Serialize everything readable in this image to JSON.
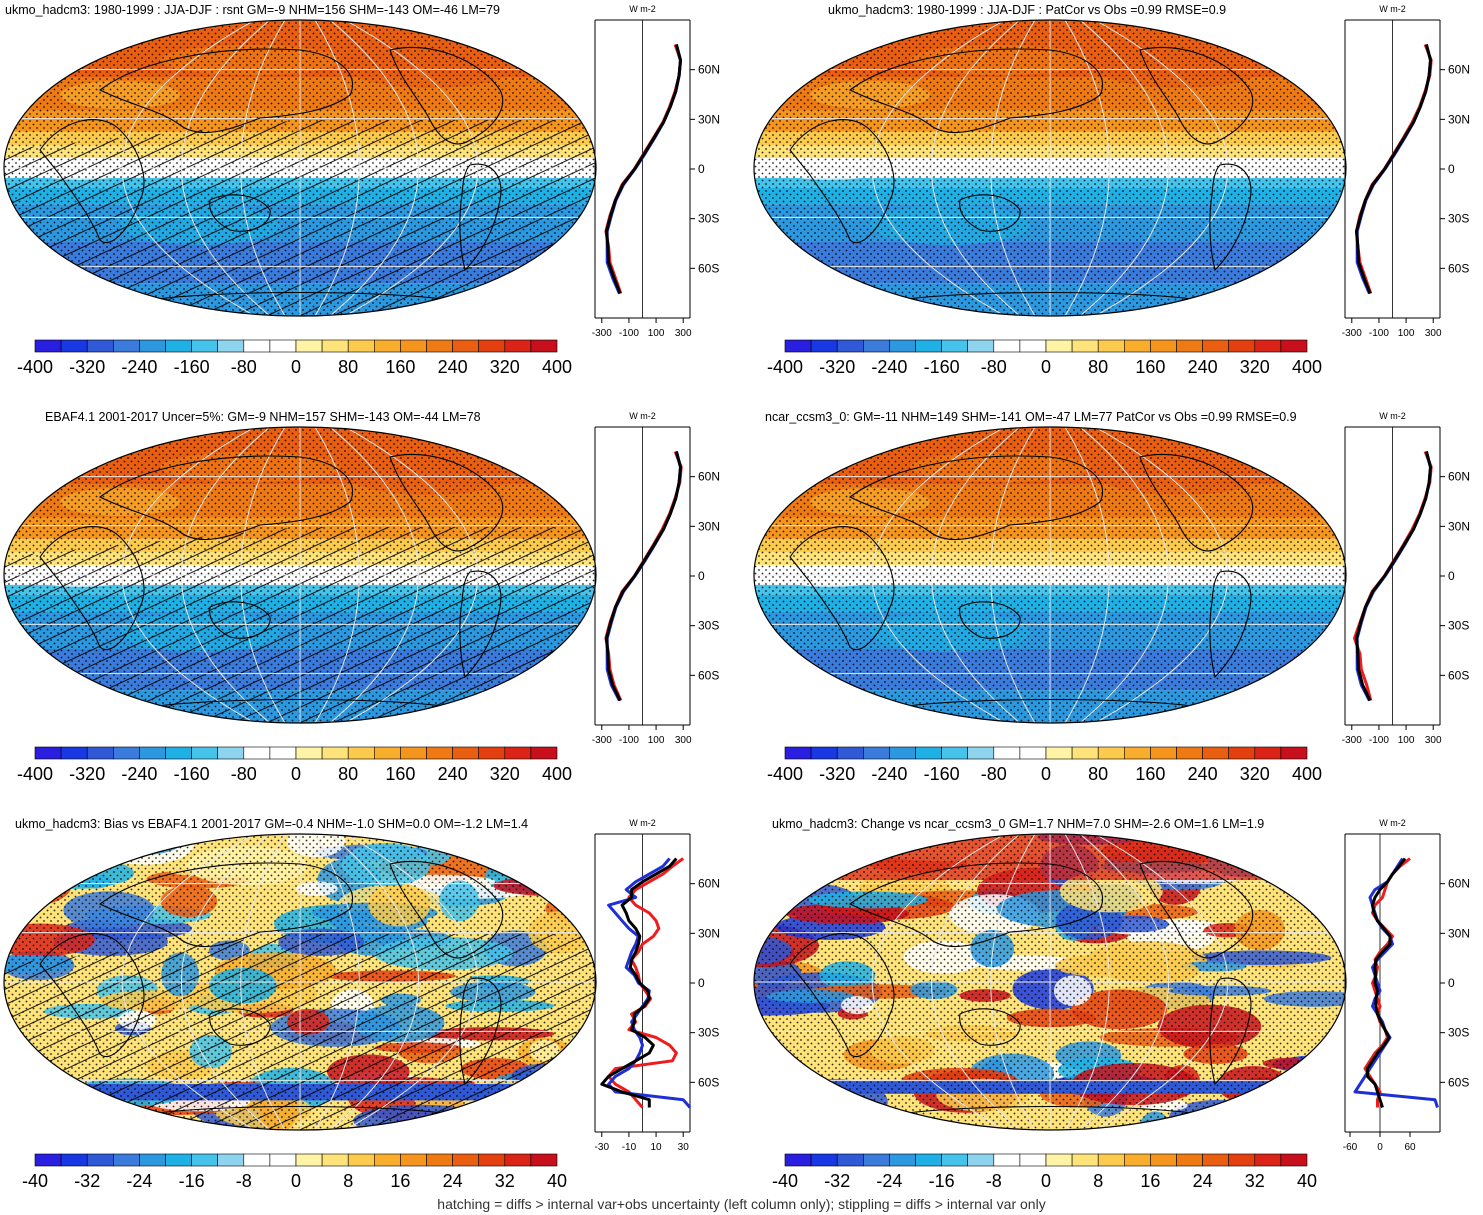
{
  "footer": "hatching = diffs > internal var+obs uncertainty (left column only); stippling = diffs > internal var only",
  "colors": {
    "scale": [
      "#2a1ee0",
      "#1738e3",
      "#2f59d6",
      "#3a7bdc",
      "#2b98e0",
      "#1fb1e6",
      "#45c3ea",
      "#8fd4ee",
      "#ffffff",
      "#ffffff",
      "#fff3a6",
      "#fde37a",
      "#fccb4e",
      "#f9ad2c",
      "#f5951d",
      "#ef7a14",
      "#ea5e12",
      "#e4400f",
      "#dc2318",
      "#c8101c"
    ],
    "red_line": "#ee1c1c",
    "blue_line": "#1f2fd6",
    "black_line": "#000000"
  },
  "chart_data": [
    {
      "type": "heatmap",
      "panel": "top-left",
      "title": "ukmo_hadcm3: 1980-1999 : JJA-DJF : rsnt GM=-9 NHM=156 SHM=-143 OM=-46 LM=79",
      "colorbar_ticks": [
        "-400",
        "-320",
        "-240",
        "-160",
        "-80",
        "0",
        "80",
        "160",
        "240",
        "320",
        "400"
      ],
      "profile": {
        "unit": "W m-2",
        "xticks": [
          "-300",
          "-100",
          "100",
          "300"
        ],
        "xlim": [
          -350,
          350
        ],
        "yticks": [
          "60N",
          "30N",
          "0",
          "30S",
          "60S"
        ],
        "lat": [
          80,
          70,
          60,
          50,
          40,
          30,
          20,
          10,
          0,
          -10,
          -20,
          -30,
          -40,
          -50,
          -60,
          -70,
          -80
        ],
        "series": [
          {
            "color": "red",
            "values": [
              240,
              280,
              270,
              240,
              200,
              150,
              80,
              10,
              -60,
              -150,
              -200,
              -240,
              -270,
              -250,
              -240,
              -200,
              -160
            ]
          },
          {
            "color": "blue",
            "values": [
              250,
              280,
              270,
              245,
              205,
              155,
              90,
              20,
              -55,
              -140,
              -195,
              -230,
              -260,
              -260,
              -260,
              -220,
              -170
            ]
          },
          {
            "color": "black",
            "values": [
              250,
              280,
              270,
              245,
              205,
              155,
              85,
              15,
              -58,
              -145,
              -200,
              -235,
              -265,
              -255,
              -250,
              -210,
              -165
            ]
          }
        ]
      }
    },
    {
      "type": "heatmap",
      "panel": "top-right",
      "title": "ukmo_hadcm3: 1980-1999 : JJA-DJF : PatCor vs Obs =0.99 RMSE=0.9",
      "colorbar_ticks": [
        "-400",
        "-320",
        "-240",
        "-160",
        "-80",
        "0",
        "80",
        "160",
        "240",
        "320",
        "400"
      ],
      "profile": {
        "unit": "W m-2",
        "xticks": [
          "-300",
          "-100",
          "100",
          "300"
        ],
        "xlim": [
          -350,
          350
        ],
        "yticks": [
          "60N",
          "30N",
          "0",
          "30S",
          "60S"
        ],
        "lat": [
          80,
          70,
          60,
          50,
          40,
          30,
          20,
          10,
          0,
          -10,
          -20,
          -30,
          -40,
          -50,
          -60,
          -70,
          -80
        ],
        "series": [
          {
            "color": "red",
            "values": [
              240,
              285,
              275,
              240,
              200,
              145,
              80,
              10,
              -60,
              -150,
              -200,
              -240,
              -265,
              -255,
              -240,
              -200,
              -160
            ]
          },
          {
            "color": "blue",
            "values": [
              250,
              280,
              270,
              245,
              205,
              155,
              90,
              20,
              -55,
              -140,
              -195,
              -230,
              -260,
              -260,
              -260,
              -220,
              -170
            ]
          },
          {
            "color": "black",
            "values": [
              250,
              280,
              270,
              245,
              205,
              155,
              85,
              15,
              -58,
              -145,
              -200,
              -235,
              -265,
              -255,
              -250,
              -210,
              -165
            ]
          }
        ]
      }
    },
    {
      "type": "heatmap",
      "panel": "middle-left",
      "title": "EBAF4.1 2001-2017 Uncer=5%: GM=-9 NHM=157 SHM=-143 OM=-44 LM=78",
      "colorbar_ticks": [
        "-400",
        "-320",
        "-240",
        "-160",
        "-80",
        "0",
        "80",
        "160",
        "240",
        "320",
        "400"
      ],
      "profile": {
        "unit": "W m-2",
        "xticks": [
          "-300",
          "-100",
          "100",
          "300"
        ],
        "xlim": [
          -350,
          350
        ],
        "yticks": [
          "60N",
          "30N",
          "0",
          "30S",
          "60S"
        ],
        "lat": [
          80,
          70,
          60,
          50,
          40,
          30,
          20,
          10,
          0,
          -10,
          -20,
          -30,
          -40,
          -50,
          -60,
          -70,
          -80
        ],
        "series": [
          {
            "color": "red",
            "values": [
              240,
              285,
              275,
              240,
              200,
              145,
              80,
              10,
              -60,
              -150,
              -200,
              -240,
              -270,
              -250,
              -240,
              -210,
              -160
            ]
          },
          {
            "color": "blue",
            "values": [
              250,
              280,
              270,
              245,
              205,
              155,
              90,
              20,
              -55,
              -140,
              -195,
              -230,
              -260,
              -260,
              -260,
              -230,
              -170
            ]
          },
          {
            "color": "black",
            "values": [
              250,
              280,
              270,
              245,
              205,
              155,
              85,
              15,
              -58,
              -145,
              -200,
              -235,
              -265,
              -255,
              -250,
              -220,
              -165
            ]
          }
        ]
      }
    },
    {
      "type": "heatmap",
      "panel": "middle-right",
      "title": "ncar_ccsm3_0: GM=-11 NHM=149 SHM=-141 OM=-47 LM=77 PatCor vs Obs =0.99 RMSE=0.9",
      "colorbar_ticks": [
        "-400",
        "-320",
        "-240",
        "-160",
        "-80",
        "0",
        "80",
        "160",
        "240",
        "320",
        "400"
      ],
      "profile": {
        "unit": "W m-2",
        "xticks": [
          "-300",
          "-100",
          "100",
          "300"
        ],
        "xlim": [
          -350,
          350
        ],
        "yticks": [
          "60N",
          "30N",
          "0",
          "30S",
          "60S"
        ],
        "lat": [
          80,
          70,
          60,
          50,
          40,
          30,
          20,
          10,
          0,
          -10,
          -20,
          -30,
          -40,
          -50,
          -60,
          -70,
          -80
        ],
        "series": [
          {
            "color": "red",
            "values": [
              240,
              285,
              275,
              240,
              200,
              145,
              80,
              10,
              -60,
              -150,
              -200,
              -240,
              -280,
              -240,
              -230,
              -190,
              -160
            ]
          },
          {
            "color": "blue",
            "values": [
              250,
              280,
              270,
              245,
              205,
              155,
              90,
              20,
              -55,
              -140,
              -195,
              -230,
              -260,
              -260,
              -260,
              -230,
              -170
            ]
          },
          {
            "color": "black",
            "values": [
              250,
              280,
              270,
              245,
              205,
              155,
              85,
              15,
              -58,
              -145,
              -200,
              -235,
              -265,
              -255,
              -250,
              -220,
              -165
            ]
          }
        ]
      }
    },
    {
      "type": "heatmap",
      "panel": "bottom-left",
      "title": "ukmo_hadcm3: Bias vs EBAF4.1 2001-2017 GM=-0.4 NHM=-1.0 SHM=0.0 OM=-1.2 LM=1.4",
      "colorbar_ticks": [
        "-40",
        "-32",
        "-24",
        "-16",
        "-8",
        "0",
        "8",
        "16",
        "24",
        "32",
        "40"
      ],
      "profile": {
        "unit": "W m-2",
        "xticks": [
          "-30",
          "-10",
          "10",
          "30"
        ],
        "xlim": [
          -35,
          35
        ],
        "yticks": [
          "60N",
          "30N",
          "0",
          "30S",
          "60S"
        ],
        "lat": [
          80,
          75,
          70,
          65,
          60,
          55,
          50,
          45,
          40,
          35,
          30,
          25,
          20,
          15,
          10,
          5,
          0,
          -5,
          -10,
          -15,
          -20,
          -25,
          -30,
          -35,
          -40,
          -45,
          -50,
          -55,
          -60,
          -65,
          -70,
          -75,
          -80
        ],
        "series": [
          {
            "color": "red",
            "values": [
              30,
              22,
              15,
              5,
              -5,
              -10,
              -5,
              5,
              10,
              12,
              8,
              0,
              -3,
              -8,
              -5,
              -3,
              -2,
              2,
              6,
              2,
              -8,
              -5,
              -10,
              10,
              20,
              25,
              22,
              -20,
              -25,
              -20,
              -10,
              -5,
              0
            ]
          },
          {
            "color": "blue",
            "values": [
              20,
              15,
              5,
              -5,
              -12,
              -5,
              -25,
              -20,
              -15,
              -10,
              -3,
              -5,
              -8,
              -10,
              -12,
              -6,
              -3,
              5,
              4,
              0,
              -4,
              -8,
              -6,
              -2,
              0,
              -2,
              -5,
              -10,
              -20,
              -25,
              -20,
              30,
              35
            ]
          },
          {
            "color": "black",
            "values": [
              25,
              20,
              10,
              0,
              -8,
              -8,
              -15,
              -12,
              -10,
              -5,
              -2,
              -3,
              -5,
              -8,
              -9,
              -5,
              -2,
              4,
              5,
              1,
              -6,
              -6,
              -8,
              2,
              8,
              5,
              -5,
              -15,
              -25,
              -30,
              -15,
              5,
              5
            ]
          }
        ]
      }
    },
    {
      "type": "heatmap",
      "panel": "bottom-right",
      "title": "ukmo_hadcm3: Change vs ncar_ccsm3_0 GM=1.7 NHM=7.0 SHM=-2.6 OM=1.6 LM=1.9",
      "colorbar_ticks": [
        "-40",
        "-32",
        "-24",
        "-16",
        "-8",
        "0",
        "8",
        "16",
        "24",
        "32",
        "40"
      ],
      "profile": {
        "unit": "W m-2",
        "xticks": [
          "-60",
          "0",
          "60"
        ],
        "xlim": [
          -70,
          120
        ],
        "yticks": [
          "60N",
          "30N",
          "0",
          "30S",
          "60S"
        ],
        "lat": [
          80,
          75,
          70,
          65,
          60,
          55,
          50,
          45,
          40,
          35,
          30,
          25,
          20,
          15,
          10,
          5,
          0,
          -5,
          -10,
          -15,
          -20,
          -25,
          -30,
          -35,
          -40,
          -45,
          -50,
          -55,
          -60,
          -65,
          -70,
          -75,
          -80
        ],
        "series": [
          {
            "color": "red",
            "values": [
              60,
              40,
              25,
              15,
              10,
              5,
              -10,
              -15,
              -5,
              10,
              25,
              15,
              0,
              -10,
              -5,
              -8,
              -15,
              -10,
              -5,
              0,
              -5,
              0,
              10,
              15,
              5,
              -10,
              -20,
              -30,
              -20,
              -10,
              0,
              -5,
              -5
            ]
          },
          {
            "color": "blue",
            "values": [
              45,
              35,
              25,
              15,
              -10,
              -20,
              -15,
              -10,
              -5,
              5,
              20,
              25,
              10,
              -5,
              -15,
              -10,
              -5,
              0,
              -10,
              -15,
              -5,
              5,
              10,
              20,
              10,
              0,
              -10,
              -20,
              -30,
              -40,
              -50,
              110,
              115
            ]
          },
          {
            "color": "black",
            "values": [
              50,
              38,
              25,
              15,
              0,
              -10,
              -15,
              -12,
              -5,
              8,
              20,
              20,
              5,
              -8,
              -10,
              -9,
              -10,
              -5,
              -8,
              -8,
              -5,
              2,
              10,
              18,
              8,
              -5,
              -15,
              -25,
              -25,
              -10,
              -5,
              0,
              5
            ]
          }
        ]
      }
    }
  ]
}
